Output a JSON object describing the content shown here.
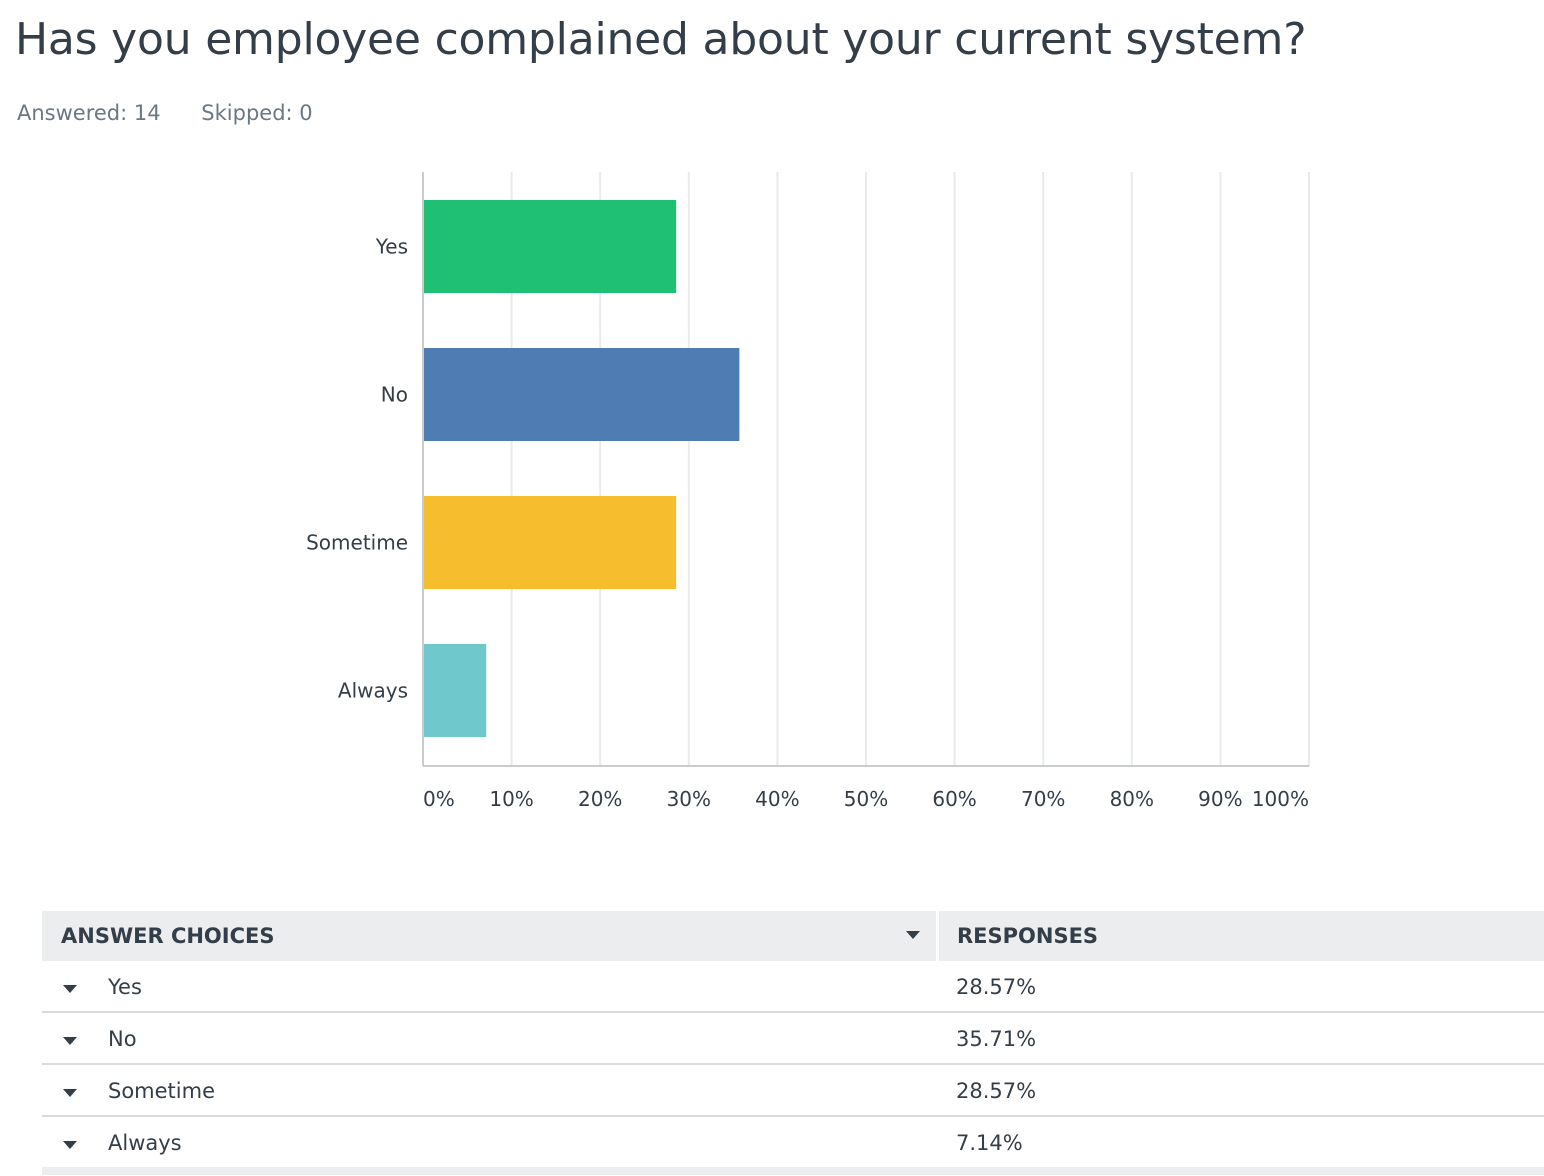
{
  "question": {
    "title": "Has you employee complained about your current system?",
    "answered": "Answered: 14",
    "skipped": "Skipped: 0"
  },
  "chart_data": {
    "type": "bar",
    "orientation": "horizontal",
    "categories": [
      "Yes",
      "No",
      "Sometime",
      "Always"
    ],
    "values": [
      28.57,
      35.71,
      28.57,
      7.14
    ],
    "colors": [
      "#1fbf74",
      "#507cb4",
      "#f6bd2f",
      "#6fc8cb"
    ],
    "xlim": [
      0,
      100
    ],
    "xticks": [
      "0%",
      "10%",
      "20%",
      "30%",
      "40%",
      "50%",
      "60%",
      "70%",
      "80%",
      "90%",
      "100%"
    ],
    "grid": true,
    "title": "",
    "xlabel": "",
    "ylabel": ""
  },
  "table": {
    "header_choices": "ANSWER CHOICES",
    "header_responses": "RESPONSES",
    "rows": [
      {
        "label": "Yes",
        "value": "28.57%"
      },
      {
        "label": "No",
        "value": "35.71%"
      },
      {
        "label": "Sometime",
        "value": "28.57%"
      },
      {
        "label": "Always",
        "value": "7.14%"
      }
    ]
  },
  "icons": {
    "sort": "chevron-down-icon",
    "row_expand": "chevron-down-icon"
  }
}
